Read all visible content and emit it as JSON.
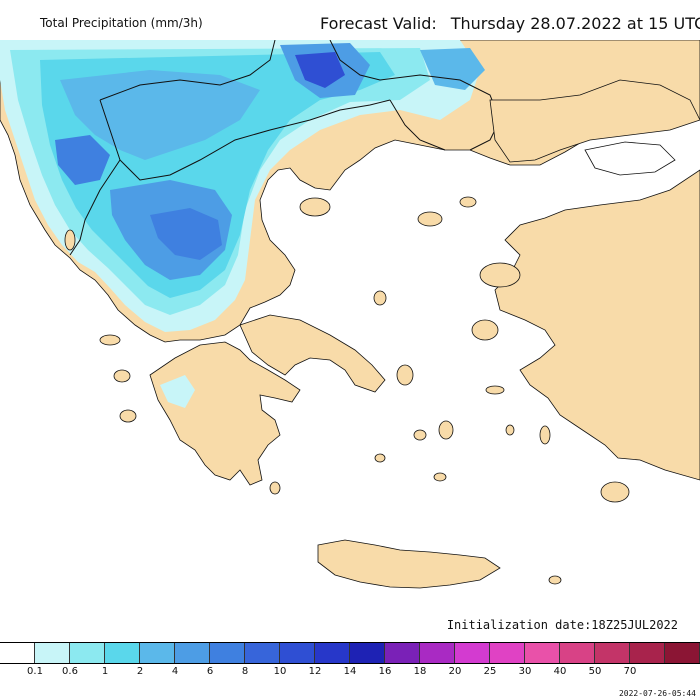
{
  "header": {
    "title": "Total Precipitation (mm/3h)",
    "valid_label": "Forecast Valid:",
    "valid_text": "Thursday 28.07.2022 at 15 UTC"
  },
  "init_text": "Initialization date:18Z25JUL2022",
  "timestamp": "2022-07-26-05:44",
  "colors": {
    "sea": "#ffffff",
    "land_dry": "#f8dba9",
    "border": "#111111",
    "scale": [
      "#ffffff",
      "#c8f5f8",
      "#8ce9f0",
      "#5ad7eb",
      "#5bb8ea",
      "#4d9de5",
      "#3f80e0",
      "#3765da",
      "#2f4fd3",
      "#2737c9",
      "#1e22b4",
      "#7a21b7",
      "#a92ac3",
      "#d33bd0",
      "#e042c4",
      "#e951a9",
      "#d84286",
      "#c33468",
      "#a8234c",
      "#8b1534"
    ]
  },
  "legend_ticks": [
    "0.1",
    "0.6",
    "1",
    "2",
    "4",
    "6",
    "8",
    "10",
    "12",
    "14",
    "16",
    "18",
    "20",
    "25",
    "30",
    "40",
    "50",
    "70"
  ]
}
